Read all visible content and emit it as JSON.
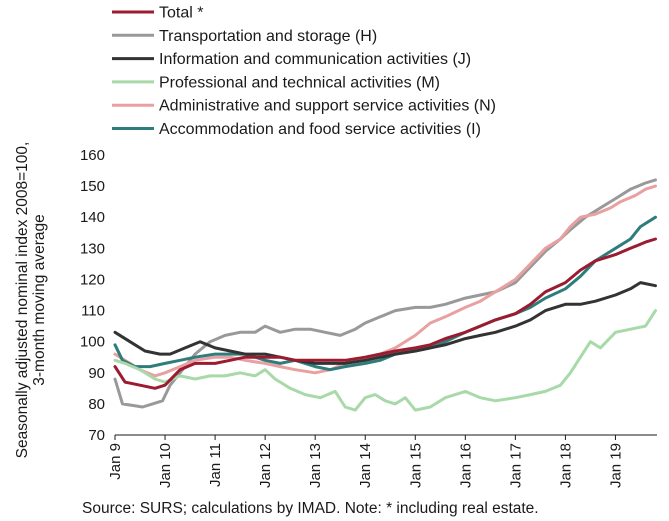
{
  "chart_data": {
    "type": "line",
    "ylabel_lines": [
      "Seasonally adjusted nominal index 2008=100,",
      "3-month moving average"
    ],
    "ylim": [
      70,
      160
    ],
    "yticks": [
      70,
      80,
      90,
      100,
      110,
      120,
      130,
      140,
      150,
      160
    ],
    "xlim": [
      2009.0,
      2019.83
    ],
    "xtick_labels": [
      "Jan 9",
      "Jan 10",
      "Jan 11",
      "Jan 12",
      "Jan 13",
      "Jan 14",
      "Jan 15",
      "Jan 16",
      "Jan 17",
      "Jan 18",
      "Jan 19"
    ],
    "xtick_values": [
      2009,
      2010,
      2011,
      2012,
      2013,
      2014,
      2015,
      2016,
      2017,
      2018,
      2019
    ],
    "grid": false,
    "legend_position": "top-left",
    "series": [
      {
        "name": "Total *",
        "color": "#9b1b30",
        "width": 3,
        "points": [
          [
            2009.0,
            92
          ],
          [
            2009.2,
            87
          ],
          [
            2009.5,
            86
          ],
          [
            2009.8,
            85
          ],
          [
            2010.0,
            86
          ],
          [
            2010.3,
            91
          ],
          [
            2010.6,
            93
          ],
          [
            2011.0,
            93
          ],
          [
            2011.3,
            94
          ],
          [
            2011.6,
            95
          ],
          [
            2012.0,
            95
          ],
          [
            2012.3,
            95
          ],
          [
            2012.6,
            94
          ],
          [
            2013.0,
            94
          ],
          [
            2013.3,
            94
          ],
          [
            2013.6,
            94
          ],
          [
            2014.0,
            95
          ],
          [
            2014.3,
            96
          ],
          [
            2014.6,
            97
          ],
          [
            2015.0,
            98
          ],
          [
            2015.3,
            99
          ],
          [
            2015.6,
            101
          ],
          [
            2016.0,
            103
          ],
          [
            2016.3,
            105
          ],
          [
            2016.6,
            107
          ],
          [
            2017.0,
            109
          ],
          [
            2017.3,
            112
          ],
          [
            2017.6,
            116
          ],
          [
            2018.0,
            119
          ],
          [
            2018.3,
            123
          ],
          [
            2018.6,
            126
          ],
          [
            2019.0,
            128
          ],
          [
            2019.3,
            130
          ],
          [
            2019.6,
            132
          ],
          [
            2019.8,
            133
          ]
        ]
      },
      {
        "name": "Transportation and storage (H)",
        "color": "#999999",
        "width": 3,
        "points": [
          [
            2009.0,
            88
          ],
          [
            2009.15,
            80
          ],
          [
            2009.35,
            79.5
          ],
          [
            2009.55,
            79
          ],
          [
            2009.75,
            80
          ],
          [
            2009.95,
            81
          ],
          [
            2010.1,
            86
          ],
          [
            2010.3,
            90
          ],
          [
            2010.6,
            96
          ],
          [
            2010.9,
            100
          ],
          [
            2011.2,
            102
          ],
          [
            2011.5,
            103
          ],
          [
            2011.8,
            103
          ],
          [
            2012.0,
            105
          ],
          [
            2012.3,
            103
          ],
          [
            2012.6,
            104
          ],
          [
            2012.9,
            104
          ],
          [
            2013.2,
            103
          ],
          [
            2013.5,
            102
          ],
          [
            2013.8,
            104
          ],
          [
            2014.0,
            106
          ],
          [
            2014.3,
            108
          ],
          [
            2014.6,
            110
          ],
          [
            2015.0,
            111
          ],
          [
            2015.3,
            111
          ],
          [
            2015.6,
            112
          ],
          [
            2016.0,
            114
          ],
          [
            2016.3,
            115
          ],
          [
            2016.6,
            116
          ],
          [
            2017.0,
            119
          ],
          [
            2017.3,
            124
          ],
          [
            2017.6,
            129
          ],
          [
            2017.9,
            133
          ],
          [
            2018.1,
            136
          ],
          [
            2018.4,
            140
          ],
          [
            2018.7,
            143
          ],
          [
            2019.0,
            146
          ],
          [
            2019.3,
            149
          ],
          [
            2019.6,
            151
          ],
          [
            2019.8,
            152
          ]
        ]
      },
      {
        "name": "Information and communication activities (J)",
        "color": "#333333",
        "width": 3,
        "points": [
          [
            2009.0,
            103
          ],
          [
            2009.3,
            100
          ],
          [
            2009.6,
            97
          ],
          [
            2009.9,
            96
          ],
          [
            2010.1,
            96
          ],
          [
            2010.4,
            98
          ],
          [
            2010.7,
            100
          ],
          [
            2011.0,
            98
          ],
          [
            2011.3,
            97
          ],
          [
            2011.6,
            96
          ],
          [
            2012.0,
            96
          ],
          [
            2012.3,
            95
          ],
          [
            2012.6,
            94
          ],
          [
            2013.0,
            93
          ],
          [
            2013.3,
            93
          ],
          [
            2013.6,
            93
          ],
          [
            2014.0,
            94
          ],
          [
            2014.3,
            95
          ],
          [
            2014.6,
            96
          ],
          [
            2015.0,
            97
          ],
          [
            2015.3,
            98
          ],
          [
            2015.6,
            99
          ],
          [
            2016.0,
            101
          ],
          [
            2016.3,
            102
          ],
          [
            2016.6,
            103
          ],
          [
            2017.0,
            105
          ],
          [
            2017.3,
            107
          ],
          [
            2017.6,
            110
          ],
          [
            2018.0,
            112
          ],
          [
            2018.3,
            112
          ],
          [
            2018.6,
            113
          ],
          [
            2019.0,
            115
          ],
          [
            2019.3,
            117
          ],
          [
            2019.5,
            119
          ],
          [
            2019.8,
            118
          ]
        ]
      },
      {
        "name": "Professional and technical activities (M)",
        "color": "#a8d9a8",
        "width": 3,
        "points": [
          [
            2009.0,
            94
          ],
          [
            2009.2,
            93
          ],
          [
            2009.5,
            91
          ],
          [
            2009.8,
            88
          ],
          [
            2010.0,
            87
          ],
          [
            2010.3,
            89
          ],
          [
            2010.6,
            88
          ],
          [
            2010.9,
            89
          ],
          [
            2011.2,
            89
          ],
          [
            2011.5,
            90
          ],
          [
            2011.8,
            89
          ],
          [
            2012.0,
            91
          ],
          [
            2012.2,
            88
          ],
          [
            2012.5,
            85
          ],
          [
            2012.8,
            83
          ],
          [
            2013.1,
            82
          ],
          [
            2013.4,
            84
          ],
          [
            2013.6,
            79
          ],
          [
            2013.8,
            78
          ],
          [
            2014.0,
            82
          ],
          [
            2014.2,
            83
          ],
          [
            2014.4,
            81
          ],
          [
            2014.6,
            80
          ],
          [
            2014.8,
            82
          ],
          [
            2015.0,
            78
          ],
          [
            2015.3,
            79
          ],
          [
            2015.6,
            82
          ],
          [
            2016.0,
            84
          ],
          [
            2016.3,
            82
          ],
          [
            2016.6,
            81
          ],
          [
            2017.0,
            82
          ],
          [
            2017.3,
            83
          ],
          [
            2017.6,
            84
          ],
          [
            2017.9,
            86
          ],
          [
            2018.1,
            90
          ],
          [
            2018.3,
            95
          ],
          [
            2018.5,
            100
          ],
          [
            2018.7,
            98
          ],
          [
            2019.0,
            103
          ],
          [
            2019.3,
            104
          ],
          [
            2019.6,
            105
          ],
          [
            2019.8,
            110
          ]
        ]
      },
      {
        "name": "Administrative and support service activities (N)",
        "color": "#e8a0a0",
        "width": 3,
        "points": [
          [
            2009.0,
            96
          ],
          [
            2009.2,
            94
          ],
          [
            2009.5,
            91
          ],
          [
            2009.8,
            89
          ],
          [
            2010.0,
            90
          ],
          [
            2010.3,
            92
          ],
          [
            2010.6,
            94
          ],
          [
            2011.0,
            95
          ],
          [
            2011.3,
            95
          ],
          [
            2011.6,
            94
          ],
          [
            2012.0,
            93
          ],
          [
            2012.3,
            92
          ],
          [
            2012.6,
            91
          ],
          [
            2013.0,
            90
          ],
          [
            2013.3,
            91
          ],
          [
            2013.6,
            93
          ],
          [
            2014.0,
            95
          ],
          [
            2014.3,
            96
          ],
          [
            2014.6,
            98
          ],
          [
            2015.0,
            102
          ],
          [
            2015.3,
            106
          ],
          [
            2015.6,
            108
          ],
          [
            2016.0,
            111
          ],
          [
            2016.3,
            113
          ],
          [
            2016.6,
            116
          ],
          [
            2017.0,
            120
          ],
          [
            2017.3,
            125
          ],
          [
            2017.6,
            130
          ],
          [
            2017.9,
            133
          ],
          [
            2018.1,
            137
          ],
          [
            2018.3,
            140
          ],
          [
            2018.6,
            141
          ],
          [
            2018.9,
            143
          ],
          [
            2019.1,
            145
          ],
          [
            2019.4,
            147
          ],
          [
            2019.6,
            149
          ],
          [
            2019.8,
            150
          ]
        ]
      },
      {
        "name": "Accommodation and food service activities (I)",
        "color": "#2f7c7c",
        "width": 3,
        "points": [
          [
            2009.0,
            99
          ],
          [
            2009.15,
            94
          ],
          [
            2009.4,
            92
          ],
          [
            2009.7,
            92
          ],
          [
            2010.0,
            93
          ],
          [
            2010.3,
            94
          ],
          [
            2010.6,
            95
          ],
          [
            2011.0,
            96
          ],
          [
            2011.3,
            96
          ],
          [
            2011.6,
            96
          ],
          [
            2012.0,
            94
          ],
          [
            2012.3,
            93
          ],
          [
            2012.6,
            94
          ],
          [
            2013.0,
            92
          ],
          [
            2013.3,
            91
          ],
          [
            2013.6,
            92
          ],
          [
            2014.0,
            93
          ],
          [
            2014.3,
            94
          ],
          [
            2014.6,
            96
          ],
          [
            2015.0,
            97
          ],
          [
            2015.3,
            98
          ],
          [
            2015.6,
            100
          ],
          [
            2016.0,
            103
          ],
          [
            2016.3,
            105
          ],
          [
            2016.6,
            107
          ],
          [
            2017.0,
            109
          ],
          [
            2017.3,
            111
          ],
          [
            2017.6,
            114
          ],
          [
            2018.0,
            117
          ],
          [
            2018.3,
            121
          ],
          [
            2018.6,
            126
          ],
          [
            2019.0,
            130
          ],
          [
            2019.3,
            133
          ],
          [
            2019.5,
            137
          ],
          [
            2019.8,
            140
          ]
        ]
      }
    ]
  },
  "source_text": "Source:  SURS; calculations by IMAD. Note: * including real estate."
}
